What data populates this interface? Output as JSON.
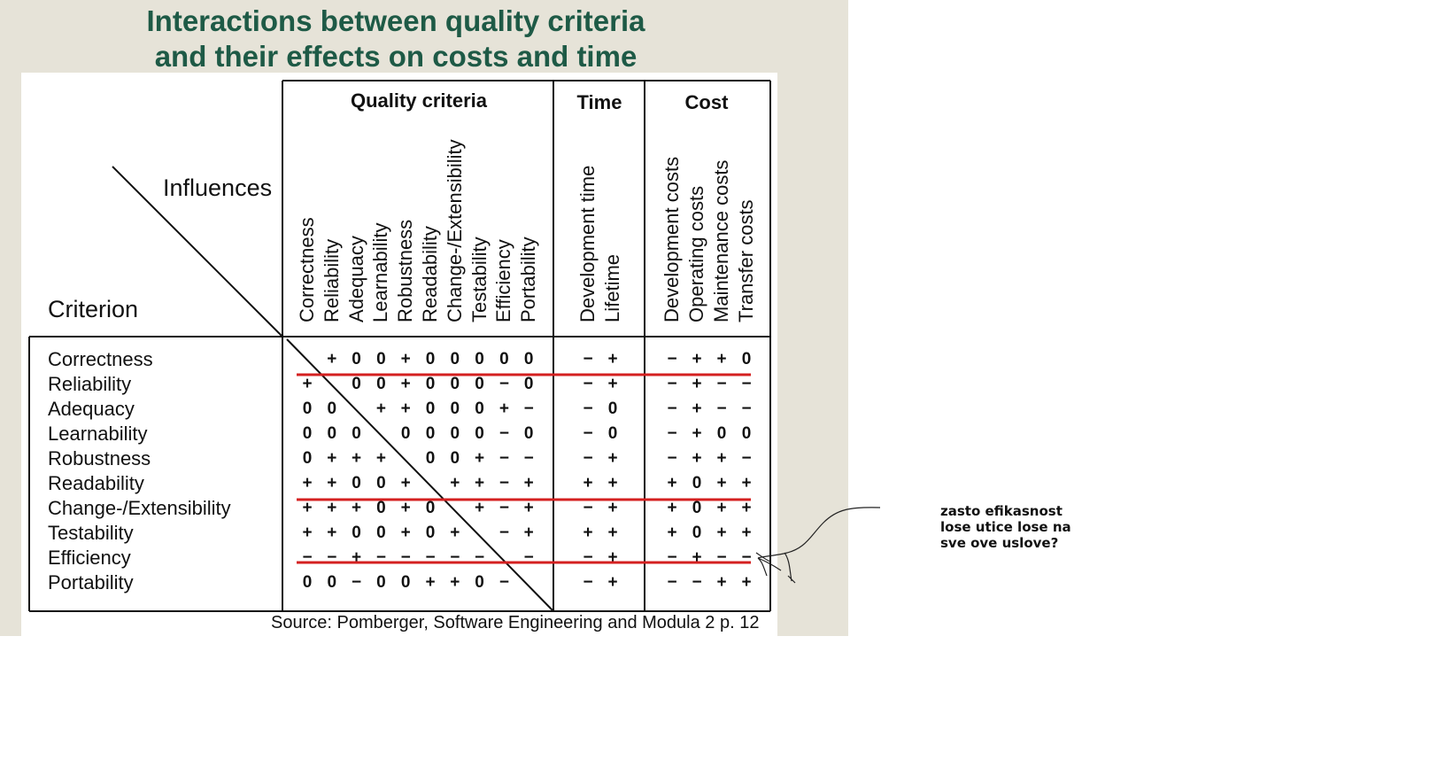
{
  "title": {
    "line1": "Interactions between quality criteria",
    "line2": "and their effects on costs and time"
  },
  "table": {
    "group_headers": {
      "quality": "Quality criteria",
      "time": "Time",
      "cost": "Cost"
    },
    "influences_label": "Influences",
    "criterion_label": "Criterion",
    "quality_columns": [
      "Correctness",
      "Reliability",
      "Adequacy",
      "Learnability",
      "Robustness",
      "Readability",
      "Change-/Extensibility",
      "Testability",
      "Efficiency",
      "Portability"
    ],
    "time_columns": [
      "Development time",
      "Lifetime"
    ],
    "cost_columns": [
      "Development costs",
      "Operating costs",
      "Maintenance costs",
      "Transfer costs"
    ],
    "rows": [
      {
        "label": "Correctness",
        "quality": [
          "",
          "+",
          "0",
          "0",
          "+",
          "0",
          "0",
          "0",
          "0",
          "0"
        ],
        "time": [
          "−",
          "+"
        ],
        "cost": [
          "−",
          "+",
          "+",
          "0"
        ]
      },
      {
        "label": "Reliability",
        "quality": [
          "+",
          "",
          "0",
          "0",
          "+",
          "0",
          "0",
          "0",
          "−",
          "0"
        ],
        "time": [
          "−",
          "+"
        ],
        "cost": [
          "−",
          "+",
          "−",
          "−"
        ]
      },
      {
        "label": "Adequacy",
        "quality": [
          "0",
          "0",
          "",
          "+",
          "+",
          "0",
          "0",
          "0",
          "+",
          "−"
        ],
        "time": [
          "−",
          "0"
        ],
        "cost": [
          "−",
          "+",
          "−",
          "−"
        ]
      },
      {
        "label": "Learnability",
        "quality": [
          "0",
          "0",
          "0",
          "",
          "0",
          "0",
          "0",
          "0",
          "−",
          "0"
        ],
        "time": [
          "−",
          "0"
        ],
        "cost": [
          "−",
          "+",
          "0",
          "0"
        ]
      },
      {
        "label": "Robustness",
        "quality": [
          "0",
          "+",
          "+",
          "+",
          "",
          "0",
          "0",
          "+",
          "−",
          "−"
        ],
        "time": [
          "−",
          "+"
        ],
        "cost": [
          "−",
          "+",
          "+",
          "−"
        ]
      },
      {
        "label": "Readability",
        "quality": [
          "+",
          "+",
          "0",
          "0",
          "+",
          "",
          "+",
          "+",
          "−",
          "+"
        ],
        "time": [
          "+",
          "+"
        ],
        "cost": [
          "+",
          "0",
          "+",
          "+"
        ]
      },
      {
        "label": "Change-/Extensibility",
        "quality": [
          "+",
          "+",
          "+",
          "0",
          "+",
          "0",
          "",
          "+",
          "−",
          "+"
        ],
        "time": [
          "−",
          "+"
        ],
        "cost": [
          "+",
          "0",
          "+",
          "+"
        ]
      },
      {
        "label": "Testability",
        "quality": [
          "+",
          "+",
          "0",
          "0",
          "+",
          "0",
          "+",
          "",
          "−",
          "+"
        ],
        "time": [
          "+",
          "+"
        ],
        "cost": [
          "+",
          "0",
          "+",
          "+"
        ]
      },
      {
        "label": "Efficiency",
        "quality": [
          "−",
          "−",
          "+",
          "−",
          "−",
          "−",
          "−",
          "−",
          "",
          "−"
        ],
        "time": [
          "−",
          "+"
        ],
        "cost": [
          "−",
          "+",
          "−",
          "−"
        ]
      },
      {
        "label": "Portability",
        "quality": [
          "0",
          "0",
          "−",
          "0",
          "0",
          "+",
          "+",
          "0",
          "−",
          ""
        ],
        "time": [
          "−",
          "+"
        ],
        "cost": [
          "−",
          "−",
          "+",
          "+"
        ]
      }
    ],
    "highlighted_rows": [
      "Correctness",
      "Readability",
      "Efficiency"
    ]
  },
  "source": "Source: Pomberger, Software Engineering and Modula 2 p. 12",
  "note": "zasto efikasnost lose utice lose na sve ove uslove?",
  "colors": {
    "title": "#1e5a46",
    "highlight_line": "#d42020",
    "slide_bg": "#e6e3d8"
  }
}
